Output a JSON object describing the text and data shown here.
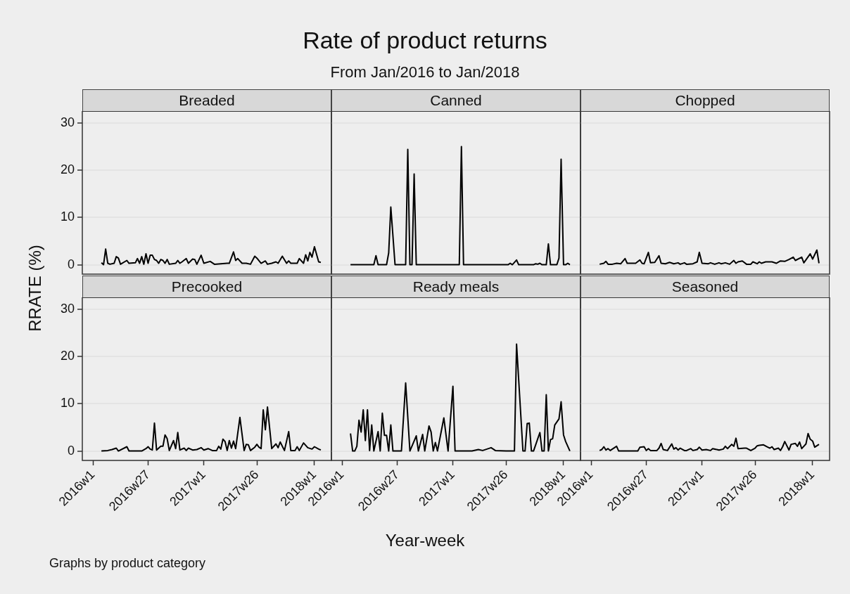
{
  "chart_data": [
    {
      "type": "line",
      "ylabel": "RRATE (%)",
      "annotations": [
        "Graphs by product category"
      ],
      "series": [
        {
          "name": "Breaded",
          "color": "#000000",
          "x": [
            "2016-01-29",
            "2016-02-05",
            "2016-02-12",
            "2016-02-19",
            "2016-02-26",
            "2016-03-11",
            "2016-03-18",
            "2016-03-25",
            "2016-04-01",
            "2016-04-22",
            "2016-04-29",
            "2016-05-20",
            "2016-05-27",
            "2016-06-03",
            "2016-06-10",
            "2016-06-17",
            "2016-06-24",
            "2016-07-01",
            "2016-07-08",
            "2016-07-15",
            "2016-07-22",
            "2016-07-29",
            "2016-08-05",
            "2016-08-12",
            "2016-08-19",
            "2016-08-26",
            "2016-09-02",
            "2016-09-09",
            "2016-09-30",
            "2016-10-07",
            "2016-10-14",
            "2016-10-21",
            "2016-11-04",
            "2016-11-11",
            "2016-11-25",
            "2016-12-02",
            "2016-12-09",
            "2016-12-23",
            "2017-01-01",
            "2017-01-22",
            "2017-02-05",
            "2017-03-19",
            "2017-03-26",
            "2017-04-09",
            "2017-04-16",
            "2017-04-23",
            "2017-05-07",
            "2017-05-21",
            "2017-06-04",
            "2017-06-18",
            "2017-06-25",
            "2017-07-09",
            "2017-07-23",
            "2017-07-30",
            "2017-08-13",
            "2017-08-27",
            "2017-09-03",
            "2017-09-17",
            "2017-10-01",
            "2017-10-08",
            "2017-10-15",
            "2017-11-05",
            "2017-11-12",
            "2017-11-26",
            "2017-12-03",
            "2017-12-10",
            "2017-12-17",
            "2017-12-24",
            "2018-01-01",
            "2018-01-15",
            "2018-01-22"
          ],
          "values": [
            0.4,
            0,
            3.3,
            0.3,
            0.1,
            0.3,
            1.7,
            1.4,
            0.1,
            0.9,
            0.3,
            0.4,
            1.3,
            0.3,
            1.7,
            0.1,
            2.3,
            0.3,
            2.0,
            2.0,
            1.1,
            0.9,
            0.3,
            1.1,
            0.9,
            0.3,
            1.1,
            0.1,
            0.3,
            0.9,
            0.3,
            0.6,
            1.3,
            0.3,
            1.2,
            1.1,
            0.1,
            2.0,
            0.3,
            0.7,
            0.1,
            0.3,
            0.3,
            2.7,
            0.9,
            1.3,
            0.3,
            0.3,
            0.1,
            1.8,
            1.4,
            0.3,
            0.8,
            0.1,
            0.3,
            0.6,
            0.3,
            1.8,
            0.3,
            0.8,
            0.3,
            0.3,
            1.3,
            0.3,
            2.1,
            0.8,
            2.6,
            1.6,
            3.8,
            0.6,
            0.5
          ]
        }
      ],
      "xlim": [
        "2015-11-27",
        "2018-02-26"
      ],
      "ylim": [
        -2,
        32.5
      ],
      "yticks": [
        0,
        10,
        20,
        30
      ],
      "grid": "y",
      "tick_labels": "y"
    },
    {
      "type": "line",
      "title": "Rate of product returns",
      "subtitle": "From Jan/2016 to Jan/2018",
      "series": [
        {
          "name": "Canned",
          "color": "#000000",
          "x": [
            "2016-01-29",
            "2016-04-15",
            "2016-04-22",
            "2016-04-29",
            "2016-05-27",
            "2016-06-03",
            "2016-06-10",
            "2016-06-24",
            "2016-07-29",
            "2016-08-05",
            "2016-08-12",
            "2016-08-19",
            "2016-08-26",
            "2016-09-02",
            "2017-01-22",
            "2017-01-29",
            "2017-02-05",
            "2017-07-02",
            "2017-07-09",
            "2017-07-16",
            "2017-07-30",
            "2017-08-06",
            "2017-09-24",
            "2017-10-01",
            "2017-10-08",
            "2017-10-15",
            "2017-10-22",
            "2017-11-05",
            "2017-11-12",
            "2017-11-19",
            "2017-12-10",
            "2017-12-17",
            "2017-12-24",
            "2018-01-01",
            "2018-01-08",
            "2018-01-15",
            "2018-01-22"
          ],
          "values": [
            0,
            0,
            1.9,
            0,
            0,
            2.5,
            12.2,
            0,
            0,
            24.4,
            0,
            0,
            19.2,
            0,
            0,
            25,
            0,
            0,
            0.3,
            0,
            1,
            0,
            0,
            0.2,
            0.1,
            0.3,
            0,
            0,
            4.4,
            0,
            0,
            1.4,
            22.3,
            0,
            0,
            0.3,
            0
          ]
        }
      ],
      "xlim": [
        "2015-11-27",
        "2018-02-26"
      ],
      "ylim": [
        -2,
        32.5
      ],
      "yticks": [
        0,
        10,
        20,
        30
      ],
      "grid": "y",
      "tick_labels": false
    },
    {
      "type": "line",
      "series": [
        {
          "name": "Chopped",
          "color": "#000000",
          "x": [
            "2016-01-29",
            "2016-02-12",
            "2016-02-19",
            "2016-02-26",
            "2016-03-11",
            "2016-03-25",
            "2016-04-08",
            "2016-04-22",
            "2016-04-29",
            "2016-05-13",
            "2016-05-27",
            "2016-06-10",
            "2016-06-17",
            "2016-06-24",
            "2016-07-08",
            "2016-07-15",
            "2016-07-29",
            "2016-08-12",
            "2016-08-19",
            "2016-09-02",
            "2016-09-16",
            "2016-09-30",
            "2016-10-14",
            "2016-10-21",
            "2016-11-04",
            "2016-11-11",
            "2016-12-02",
            "2016-12-16",
            "2016-12-23",
            "2017-01-01",
            "2017-01-22",
            "2017-01-29",
            "2017-02-12",
            "2017-02-26",
            "2017-03-05",
            "2017-03-19",
            "2017-04-02",
            "2017-04-16",
            "2017-04-23",
            "2017-04-30",
            "2017-05-14",
            "2017-05-28",
            "2017-06-11",
            "2017-06-18",
            "2017-07-02",
            "2017-07-09",
            "2017-07-16",
            "2017-07-30",
            "2017-08-20",
            "2017-09-03",
            "2017-09-17",
            "2017-10-01",
            "2017-10-15",
            "2017-10-29",
            "2017-11-05",
            "2017-11-26",
            "2017-12-03",
            "2017-12-24",
            "2018-01-01",
            "2018-01-15",
            "2018-01-22"
          ],
          "values": [
            0.1,
            0.3,
            0.7,
            0.1,
            0.1,
            0.3,
            0.2,
            1.3,
            0.3,
            0.3,
            0.3,
            1.0,
            0.3,
            0.2,
            2.6,
            0.4,
            0.5,
            1.9,
            0.3,
            0.2,
            0.5,
            0.2,
            0.4,
            0.1,
            0.4,
            0.1,
            0.2,
            0.6,
            2.6,
            0.3,
            0.2,
            0.4,
            0.1,
            0.4,
            0.2,
            0.4,
            0.1,
            0.9,
            0.3,
            0.6,
            0.8,
            0.1,
            0.1,
            0.6,
            0.2,
            0.6,
            0.3,
            0.6,
            0.6,
            0.3,
            0.8,
            0.7,
            1.1,
            1.6,
            0.9,
            1.6,
            0.4,
            2.3,
            1.2,
            3.1,
            0.3
          ]
        }
      ],
      "xlim": [
        "2015-11-27",
        "2018-02-26"
      ],
      "ylim": [
        -2,
        32.5
      ],
      "yticks": [
        0,
        10,
        20,
        30
      ],
      "grid": "y",
      "tick_labels": false
    },
    {
      "type": "line",
      "series": [
        {
          "name": "Precooked",
          "color": "#000000",
          "x": [
            "2016-01-29",
            "2016-02-19",
            "2016-03-04",
            "2016-03-18",
            "2016-03-25",
            "2016-04-22",
            "2016-04-29",
            "2016-06-10",
            "2016-06-24",
            "2016-07-01",
            "2016-07-08",
            "2016-07-15",
            "2016-07-22",
            "2016-07-29",
            "2016-08-12",
            "2016-08-19",
            "2016-08-26",
            "2016-09-02",
            "2016-09-09",
            "2016-09-23",
            "2016-09-30",
            "2016-10-07",
            "2016-10-14",
            "2016-10-28",
            "2016-11-04",
            "2016-11-11",
            "2016-11-25",
            "2016-12-09",
            "2016-12-23",
            "2017-01-01",
            "2017-01-15",
            "2017-01-29",
            "2017-02-12",
            "2017-02-19",
            "2017-02-26",
            "2017-03-05",
            "2017-03-12",
            "2017-03-19",
            "2017-03-26",
            "2017-04-02",
            "2017-04-09",
            "2017-04-16",
            "2017-04-30",
            "2017-05-14",
            "2017-05-21",
            "2017-05-28",
            "2017-06-04",
            "2017-06-18",
            "2017-06-25",
            "2017-07-02",
            "2017-07-09",
            "2017-07-16",
            "2017-07-23",
            "2017-07-30",
            "2017-08-13",
            "2017-08-27",
            "2017-09-03",
            "2017-09-10",
            "2017-09-24",
            "2017-10-08",
            "2017-10-15",
            "2017-10-29",
            "2017-11-05",
            "2017-11-12",
            "2017-11-26",
            "2017-12-10",
            "2017-12-24",
            "2018-01-01",
            "2018-01-15",
            "2018-01-22"
          ],
          "values": [
            0,
            0.1,
            0.3,
            0.6,
            0,
            0.9,
            0,
            0,
            0.5,
            0.9,
            0.4,
            0.2,
            5.9,
            0.2,
            1.0,
            1.0,
            3.4,
            2.6,
            0.1,
            2.2,
            0.5,
            3.9,
            0.2,
            0.6,
            0.1,
            0.6,
            0.2,
            0.3,
            0.7,
            0.2,
            0.5,
            0.1,
            0.1,
            1.0,
            0.4,
            2.5,
            2.0,
            0.1,
            2.2,
            0.6,
            2.1,
            0.5,
            7.1,
            0.1,
            1.4,
            1.3,
            0.1,
            0.8,
            1.4,
            0.8,
            0.5,
            8.7,
            4.5,
            9.3,
            0.5,
            1.5,
            0.7,
            1.9,
            0.1,
            4.1,
            0.1,
            0.1,
            0.9,
            0.1,
            1.7,
            0.7,
            0.4,
            0.9,
            0.4,
            0.2
          ]
        }
      ],
      "xlim": [
        "2015-11-27",
        "2018-02-26"
      ],
      "xticks": [
        {
          "value": "2016-01-01",
          "label": "2016w1"
        },
        {
          "value": "2016-07-01",
          "label": "2016w27"
        },
        {
          "value": "2017-01-01",
          "label": "2017w1"
        },
        {
          "value": "2017-06-25",
          "label": "2017w26"
        },
        {
          "value": "2018-01-01",
          "label": "2018w1"
        }
      ],
      "ylim": [
        -2,
        32.5
      ],
      "yticks": [
        0,
        10,
        20,
        30
      ],
      "grid": "y"
    },
    {
      "type": "line",
      "xlabel": "Year-week",
      "series": [
        {
          "name": "Ready meals",
          "color": "#000000",
          "x": [
            "2016-01-29",
            "2016-02-05",
            "2016-02-12",
            "2016-02-19",
            "2016-02-26",
            "2016-03-04",
            "2016-03-11",
            "2016-03-18",
            "2016-03-25",
            "2016-04-01",
            "2016-04-08",
            "2016-04-15",
            "2016-04-29",
            "2016-05-06",
            "2016-05-13",
            "2016-05-20",
            "2016-05-27",
            "2016-06-03",
            "2016-06-10",
            "2016-06-17",
            "2016-07-15",
            "2016-07-29",
            "2016-08-12",
            "2016-09-02",
            "2016-09-09",
            "2016-09-23",
            "2016-09-30",
            "2016-10-14",
            "2016-10-21",
            "2016-10-28",
            "2016-11-04",
            "2016-11-11",
            "2016-12-02",
            "2016-12-16",
            "2017-01-01",
            "2017-01-08",
            "2017-03-05",
            "2017-03-26",
            "2017-04-09",
            "2017-05-07",
            "2017-05-21",
            "2017-06-25",
            "2017-07-23",
            "2017-07-30",
            "2017-08-20",
            "2017-08-27",
            "2017-09-03",
            "2017-09-10",
            "2017-09-17",
            "2017-09-24",
            "2017-10-15",
            "2017-10-22",
            "2017-10-29",
            "2017-11-05",
            "2017-11-12",
            "2017-11-19",
            "2017-11-26",
            "2017-12-03",
            "2017-12-17",
            "2017-12-24",
            "2018-01-01",
            "2018-01-08",
            "2018-01-22"
          ],
          "values": [
            3.7,
            0,
            0,
            1.0,
            6.5,
            4.0,
            8.7,
            2.2,
            8.7,
            0.1,
            5.5,
            0,
            4.1,
            0,
            8.0,
            3.3,
            3.3,
            0,
            5.5,
            0,
            0,
            14.4,
            0,
            3.2,
            0,
            3.5,
            0,
            5.3,
            4.0,
            0,
            1.8,
            0,
            7.0,
            0,
            13.7,
            0,
            0,
            0.3,
            0.1,
            0.7,
            0.1,
            0,
            0,
            22.6,
            0,
            0,
            5.8,
            5.9,
            0,
            0,
            3.9,
            0,
            0,
            11.9,
            0,
            2.4,
            2.6,
            5.5,
            6.8,
            10.4,
            3.4,
            2.0,
            0
          ]
        }
      ],
      "xlim": [
        "2015-11-27",
        "2018-02-26"
      ],
      "xticks": [
        {
          "value": "2016-01-01",
          "label": "2016w1"
        },
        {
          "value": "2016-07-01",
          "label": "2016w27"
        },
        {
          "value": "2017-01-01",
          "label": "2017w1"
        },
        {
          "value": "2017-06-25",
          "label": "2017w26"
        },
        {
          "value": "2018-01-01",
          "label": "2018w1"
        }
      ],
      "ylim": [
        -2,
        32.5
      ],
      "yticks": [
        0,
        10,
        20,
        30
      ],
      "grid": "y",
      "tick_labels": "x"
    },
    {
      "type": "line",
      "series": [
        {
          "name": "Seasoned",
          "color": "#000000",
          "x": [
            "2016-01-29",
            "2016-02-05",
            "2016-02-12",
            "2016-02-19",
            "2016-02-26",
            "2016-03-04",
            "2016-03-25",
            "2016-04-01",
            "2016-06-03",
            "2016-06-10",
            "2016-06-24",
            "2016-07-01",
            "2016-07-08",
            "2016-07-15",
            "2016-08-05",
            "2016-08-12",
            "2016-08-19",
            "2016-08-26",
            "2016-09-09",
            "2016-09-23",
            "2016-09-30",
            "2016-10-07",
            "2016-10-14",
            "2016-10-21",
            "2016-11-04",
            "2016-11-11",
            "2016-11-25",
            "2016-12-02",
            "2016-12-16",
            "2016-12-23",
            "2017-01-01",
            "2017-01-15",
            "2017-01-29",
            "2017-02-05",
            "2017-02-19",
            "2017-02-26",
            "2017-03-12",
            "2017-03-19",
            "2017-03-26",
            "2017-04-09",
            "2017-04-16",
            "2017-04-23",
            "2017-04-30",
            "2017-05-21",
            "2017-05-28",
            "2017-06-11",
            "2017-06-25",
            "2017-07-02",
            "2017-07-09",
            "2017-07-23",
            "2017-08-06",
            "2017-08-13",
            "2017-08-20",
            "2017-08-27",
            "2017-09-10",
            "2017-09-17",
            "2017-09-24",
            "2017-10-01",
            "2017-10-08",
            "2017-10-15",
            "2017-10-22",
            "2017-11-05",
            "2017-11-12",
            "2017-11-19",
            "2017-11-26",
            "2017-12-03",
            "2017-12-10",
            "2017-12-17",
            "2017-12-24",
            "2018-01-01",
            "2018-01-08",
            "2018-01-22"
          ],
          "values": [
            0.1,
            0.3,
            0.9,
            0.2,
            0.5,
            0.1,
            1.0,
            0,
            0,
            0.8,
            0.9,
            0.1,
            0.5,
            0.1,
            0.1,
            0.6,
            1.6,
            0.3,
            0.1,
            1.5,
            0.4,
            0.7,
            0.2,
            0.6,
            0.1,
            0.1,
            0.5,
            0.1,
            0.3,
            0.8,
            0.2,
            0.3,
            0.1,
            0.5,
            0.3,
            0.2,
            0.4,
            1.0,
            0.5,
            1.4,
            1.0,
            2.7,
            0.5,
            0.6,
            0.6,
            0.1,
            0.6,
            1.1,
            1.2,
            1.3,
            0.8,
            0.6,
            0.9,
            0.3,
            0.6,
            0.1,
            0.9,
            2.0,
            1.1,
            0.2,
            1.4,
            1.6,
            1.0,
            1.9,
            0.5,
            1.0,
            1.5,
            3.7,
            2.5,
            2.1,
            0.8,
            1.4
          ]
        }
      ],
      "xlim": [
        "2015-11-27",
        "2018-02-26"
      ],
      "xticks": [
        {
          "value": "2016-01-01",
          "label": "2016w1"
        },
        {
          "value": "2016-07-01",
          "label": "2016w27"
        },
        {
          "value": "2017-01-01",
          "label": "2017w1"
        },
        {
          "value": "2017-06-25",
          "label": "2017w26"
        },
        {
          "value": "2018-01-01",
          "label": "2018w1"
        }
      ],
      "ylim": [
        -2,
        32.5
      ],
      "yticks": [
        0,
        10,
        20,
        30
      ],
      "grid": "y",
      "tick_labels": "x"
    }
  ]
}
